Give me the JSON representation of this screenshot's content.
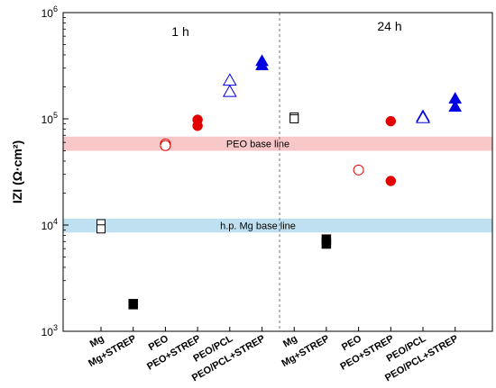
{
  "chart_data": {
    "type": "scatter",
    "ylabel": "IZI (Ω·cm²)",
    "yscale": "log",
    "ylim": [
      1000,
      1000000
    ],
    "yticks": [
      {
        "base": "10",
        "exp": "3"
      },
      {
        "base": "10",
        "exp": "4"
      },
      {
        "base": "10",
        "exp": "5"
      },
      {
        "base": "10",
        "exp": "6"
      }
    ],
    "grid": false,
    "legend": "none",
    "categories": [
      "Mg",
      "Mg+STREP",
      "PEO",
      "PEO+STREP",
      "PEO/PCL",
      "PEO/PCL+STREP",
      "Mg",
      "Mg+STREP",
      "PEO",
      "PEO+STREP",
      "PEO/PCL",
      "PEO/PCL+STREP"
    ],
    "panels": [
      "1 h",
      "24 h"
    ],
    "bands": [
      {
        "label": "PEO base line",
        "from": 50000,
        "to": 68000,
        "color": "#f8c8c8"
      },
      {
        "label": "h.p. Mg base line",
        "from": 8500,
        "to": 11500,
        "color": "#bfe0f0"
      }
    ],
    "points": [
      {
        "category": 0,
        "value": 10300,
        "marker": "square-open",
        "color": "#000000"
      },
      {
        "category": 0,
        "value": 9200,
        "marker": "square-open",
        "color": "#000000"
      },
      {
        "category": 1,
        "value": 1800,
        "marker": "square-filled",
        "color": "#000000"
      },
      {
        "category": 2,
        "value": 58000,
        "marker": "circle-open",
        "color": "#e00000"
      },
      {
        "category": 2,
        "value": 56000,
        "marker": "circle-open",
        "color": "#e00000"
      },
      {
        "category": 3,
        "value": 98000,
        "marker": "circle-filled",
        "color": "#e00000"
      },
      {
        "category": 3,
        "value": 86000,
        "marker": "circle-filled",
        "color": "#e00000"
      },
      {
        "category": 4,
        "value": 230000,
        "marker": "triangle-open",
        "color": "#0000e0"
      },
      {
        "category": 4,
        "value": 180000,
        "marker": "triangle-open",
        "color": "#0000e0"
      },
      {
        "category": 5,
        "value": 350000,
        "marker": "triangle-filled",
        "color": "#0000e0"
      },
      {
        "category": 5,
        "value": 320000,
        "marker": "triangle-filled",
        "color": "#0000e0"
      },
      {
        "category": 6,
        "value": 104000,
        "marker": "square-open",
        "color": "#000000"
      },
      {
        "category": 6,
        "value": 100000,
        "marker": "square-open",
        "color": "#000000"
      },
      {
        "category": 7,
        "value": 7300,
        "marker": "square-filled",
        "color": "#000000"
      },
      {
        "category": 7,
        "value": 6700,
        "marker": "square-filled",
        "color": "#000000"
      },
      {
        "category": 8,
        "value": 33000,
        "marker": "circle-open",
        "color": "#e00000"
      },
      {
        "category": 9,
        "value": 95000,
        "marker": "circle-filled",
        "color": "#e00000"
      },
      {
        "category": 9,
        "value": 26000,
        "marker": "circle-filled",
        "color": "#e00000"
      },
      {
        "category": 10,
        "value": 105000,
        "marker": "triangle-open",
        "color": "#0000e0"
      },
      {
        "category": 10,
        "value": 102000,
        "marker": "triangle-open",
        "color": "#0000e0"
      },
      {
        "category": 11,
        "value": 155000,
        "marker": "triangle-filled",
        "color": "#0000e0"
      },
      {
        "category": 11,
        "value": 130000,
        "marker": "triangle-filled",
        "color": "#0000e0"
      }
    ]
  }
}
